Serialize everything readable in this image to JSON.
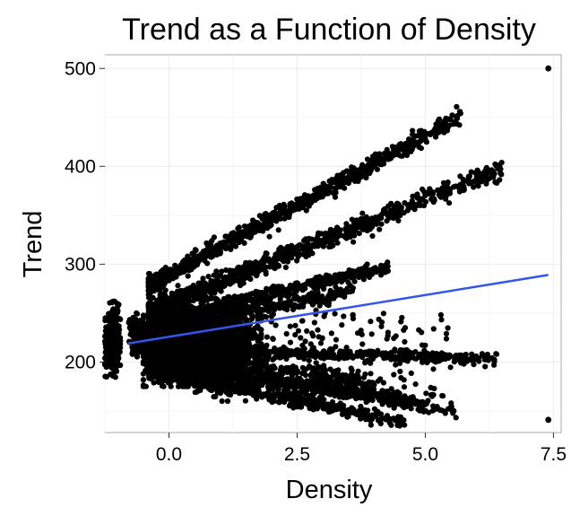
{
  "chart_data": {
    "type": "scatter",
    "title": "Trend as a Function of Density",
    "xlabel": "Density",
    "ylabel": "Trend",
    "xlim": [
      -1.25,
      7.65
    ],
    "ylim": [
      128,
      514
    ],
    "x_ticks": [
      0.0,
      2.5,
      5.0,
      7.5
    ],
    "x_tick_labels": [
      "0.0",
      "2.5",
      "5.0",
      "7.5"
    ],
    "y_ticks": [
      200,
      300,
      400,
      500
    ],
    "y_tick_labels": [
      "200",
      "300",
      "400",
      "500"
    ],
    "grid": true,
    "point_color": "#000000",
    "trend_line": {
      "color": "#3355ee",
      "x": [
        -0.8,
        7.4
      ],
      "y": [
        219,
        289
      ]
    },
    "clusters": [
      {
        "shape": "band",
        "x_range": [
          -0.4,
          5.7
        ],
        "y_at_start": 278,
        "y_at_end": 451,
        "spread": 7,
        "count": 900
      },
      {
        "shape": "band",
        "x_range": [
          -0.4,
          6.5
        ],
        "y_at_start": 252,
        "y_at_end": 398,
        "spread": 8,
        "count": 900
      },
      {
        "shape": "band",
        "x_range": [
          -0.4,
          4.3
        ],
        "y_at_start": 240,
        "y_at_end": 298,
        "spread": 6,
        "count": 600
      },
      {
        "shape": "band",
        "x_range": [
          -0.4,
          3.6
        ],
        "y_at_start": 232,
        "y_at_end": 272,
        "spread": 6,
        "count": 450
      },
      {
        "shape": "band",
        "x_range": [
          -0.4,
          6.4
        ],
        "y_at_start": 213,
        "y_at_end": 203,
        "spread": 5,
        "count": 700
      },
      {
        "shape": "band",
        "x_range": [
          -0.4,
          5.0
        ],
        "y_at_start": 198,
        "y_at_end": 158,
        "spread": 6,
        "count": 600
      },
      {
        "shape": "band",
        "x_range": [
          -0.4,
          4.6
        ],
        "y_at_start": 190,
        "y_at_end": 139,
        "spread": 6,
        "count": 500
      },
      {
        "shape": "band",
        "x_range": [
          -0.4,
          5.6
        ],
        "y_at_start": 202,
        "y_at_end": 150,
        "spread": 5,
        "count": 400
      },
      {
        "shape": "band",
        "x_range": [
          -0.4,
          4.0
        ],
        "y_at_start": 208,
        "y_at_end": 178,
        "spread": 8,
        "count": 500
      },
      {
        "shape": "blob",
        "x_range": [
          -0.5,
          1.8
        ],
        "y_range": [
          175,
          265
        ],
        "count": 1700
      },
      {
        "shape": "blob",
        "x_range": [
          -1.5,
          -1.05
        ],
        "y_range": [
          185,
          245
        ],
        "count": 220
      },
      {
        "shape": "blob",
        "x_range": [
          -1.2,
          -0.95
        ],
        "y_range": [
          180,
          262
        ],
        "count": 260
      },
      {
        "shape": "blob",
        "x_range": [
          -0.8,
          -0.45
        ],
        "y_range": [
          205,
          250
        ],
        "count": 140
      },
      {
        "shape": "scatter",
        "x_range": [
          0.5,
          5.5
        ],
        "y_range": [
          160,
          250
        ],
        "count": 260
      }
    ],
    "outliers": [
      {
        "x": 7.4,
        "y": 500
      },
      {
        "x": 7.4,
        "y": 141
      }
    ]
  }
}
